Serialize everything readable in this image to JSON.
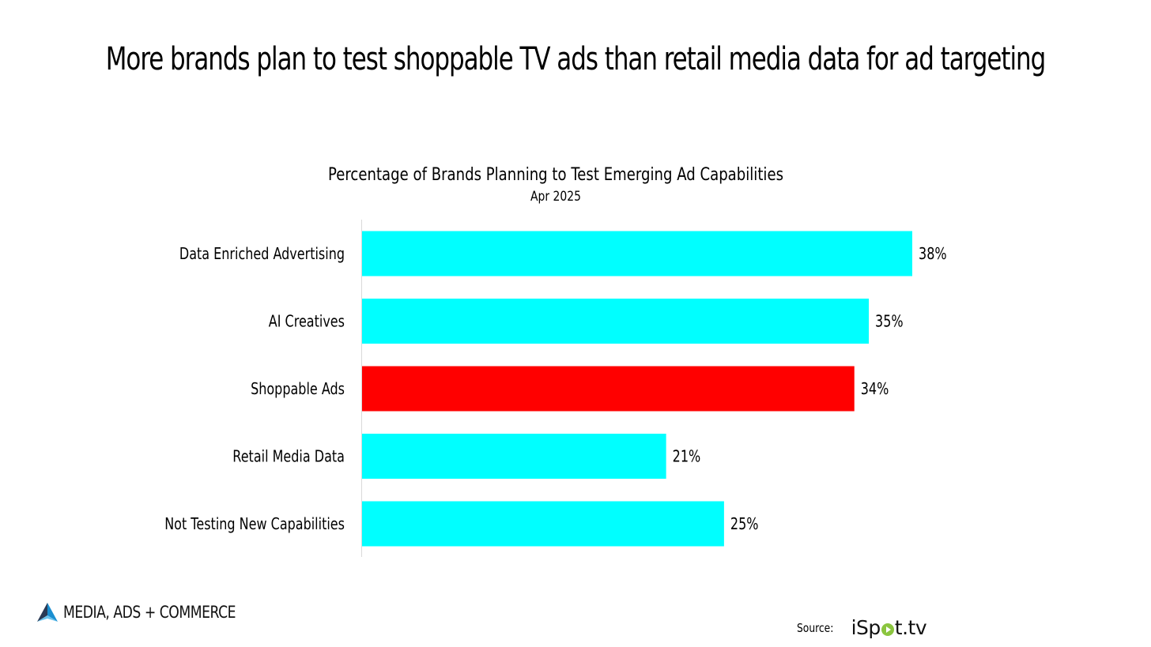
{
  "page": {
    "title": "More brands plan to test shoppable TV ads than retail media data for ad targeting"
  },
  "chart_data": {
    "type": "bar",
    "orientation": "horizontal",
    "title": "Percentage of Brands Planning to Test Emerging Ad Capabilities",
    "subtitle": "Apr 2025",
    "categories": [
      "Data Enriched Advertising",
      "AI Creatives",
      "Shoppable Ads",
      "Retail Media Data",
      "Not Testing New Capabilities"
    ],
    "values": [
      38,
      35,
      34,
      21,
      25
    ],
    "value_labels": [
      "38%",
      "35%",
      "34%",
      "21%",
      "25%"
    ],
    "bar_colors": [
      "#00ffff",
      "#00ffff",
      "#ff0000",
      "#00ffff",
      "#00ffff"
    ],
    "highlight_category": "Shoppable Ads",
    "xlim": [
      0,
      40
    ],
    "xlabel": "",
    "ylabel": "",
    "grid": false,
    "legend": null
  },
  "footer": {
    "brand_name": "MEDIA, ADS + COMMERCE",
    "brand_icon": "mountain-logo-icon",
    "source_label": "Source:",
    "source_logo": {
      "prefix": "iSp",
      "suffix": "t.tv",
      "dot_color": "#8bc53f"
    }
  },
  "colors": {
    "accent": "#00ffff",
    "highlight": "#ff0000",
    "axis": "#d9d9d9"
  }
}
